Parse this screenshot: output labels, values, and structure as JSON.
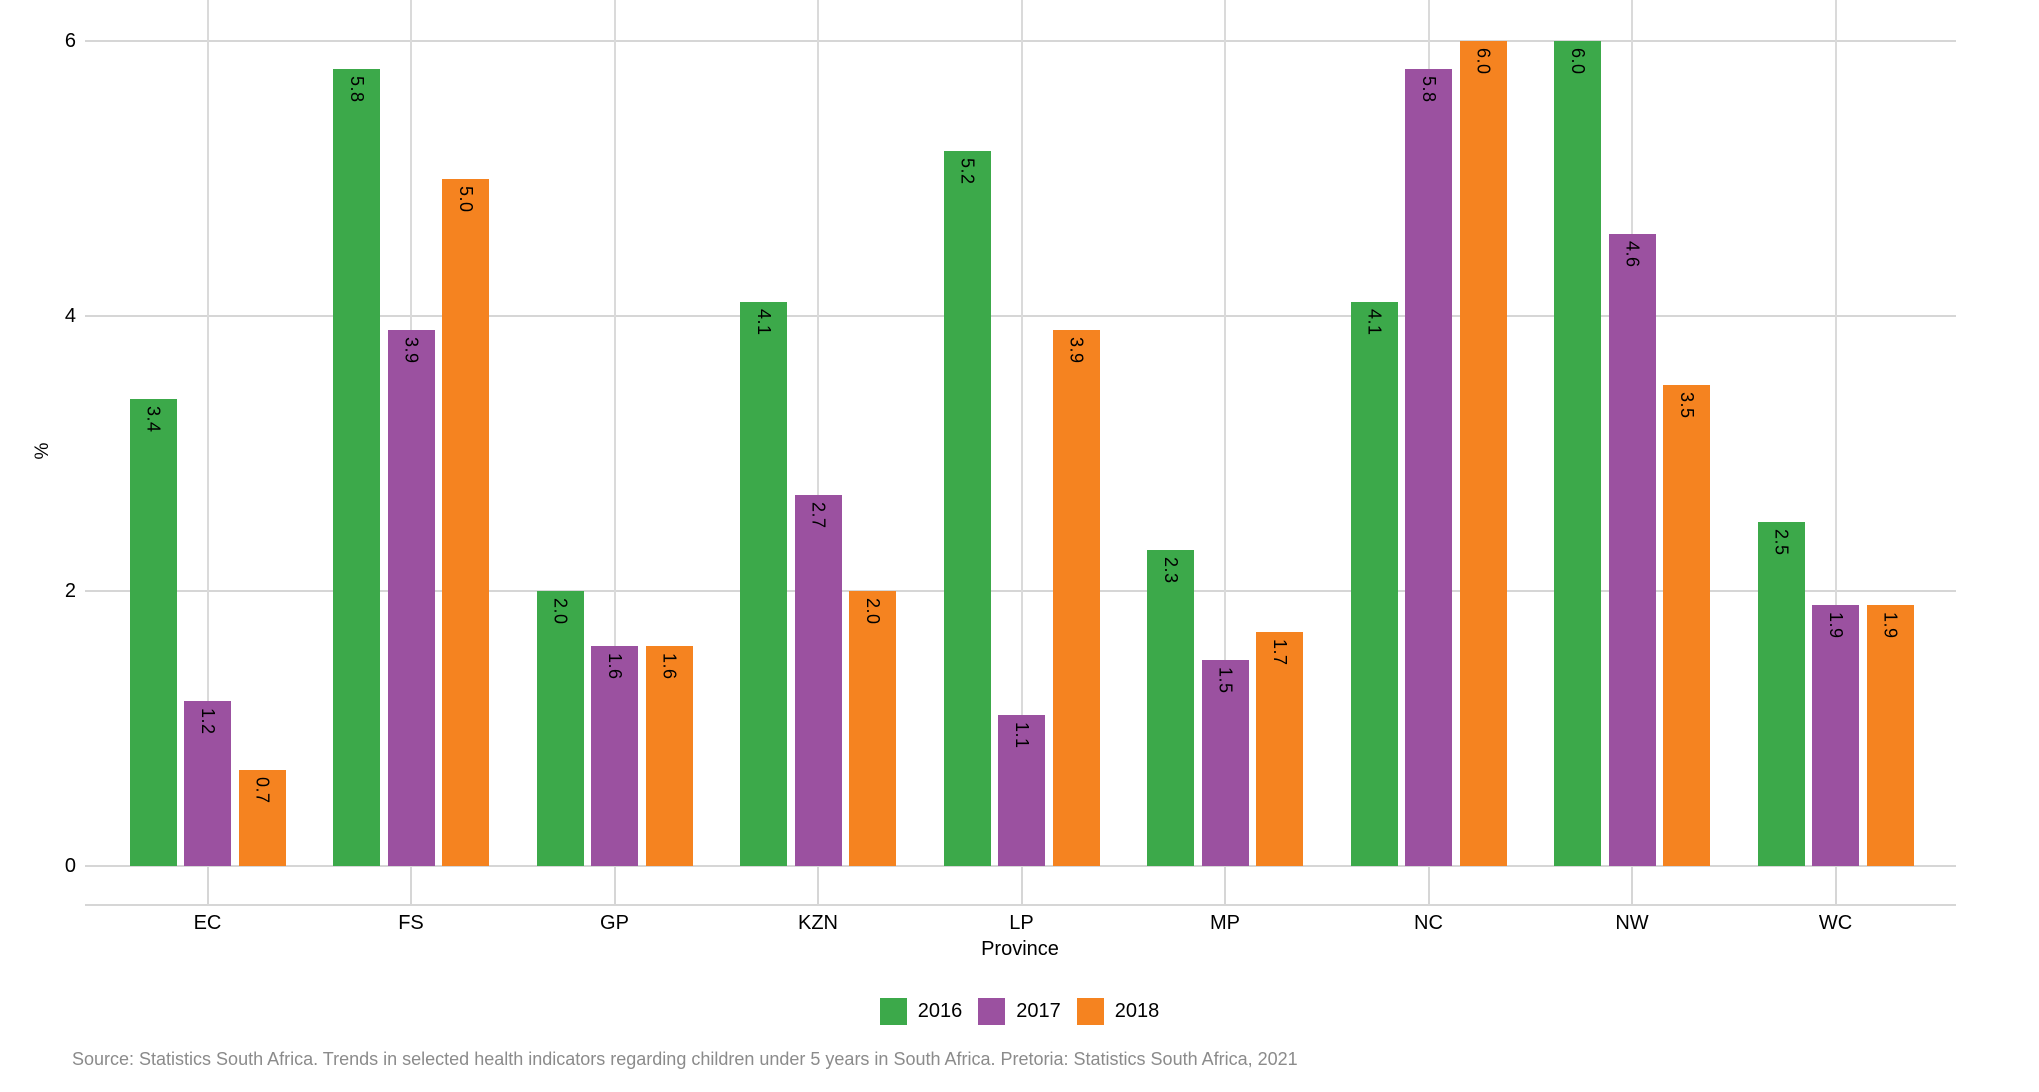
{
  "chart_data": {
    "type": "bar",
    "categories": [
      "EC",
      "FS",
      "GP",
      "KZN",
      "LP",
      "MP",
      "NC",
      "NW",
      "WC"
    ],
    "series": [
      {
        "name": "2016",
        "color": "#3CA94A",
        "values": [
          3.4,
          5.8,
          2.0,
          4.1,
          5.2,
          2.3,
          4.1,
          6.0,
          2.5
        ]
      },
      {
        "name": "2017",
        "color": "#9B51A0",
        "values": [
          1.2,
          3.9,
          1.6,
          2.7,
          1.1,
          1.5,
          5.8,
          4.6,
          1.9
        ]
      },
      {
        "name": "2018",
        "color": "#F58320",
        "values": [
          0.7,
          5.0,
          1.6,
          2.0,
          3.9,
          1.7,
          6.0,
          3.5,
          1.9
        ]
      }
    ],
    "xlabel": "Province",
    "ylabel": "%",
    "yticks": [
      0,
      2,
      4,
      6
    ],
    "ylim": [
      0,
      6.3
    ],
    "grid": true,
    "legend_position": "bottom",
    "bar_value_labels": "one-decimal, rotated 90deg clockwise, inside bar top"
  },
  "footer": {
    "source": "Source: Statistics South Africa. Trends in selected health indicators regarding children under 5 years in South Africa. Pretoria: Statistics South Africa, 2021"
  }
}
